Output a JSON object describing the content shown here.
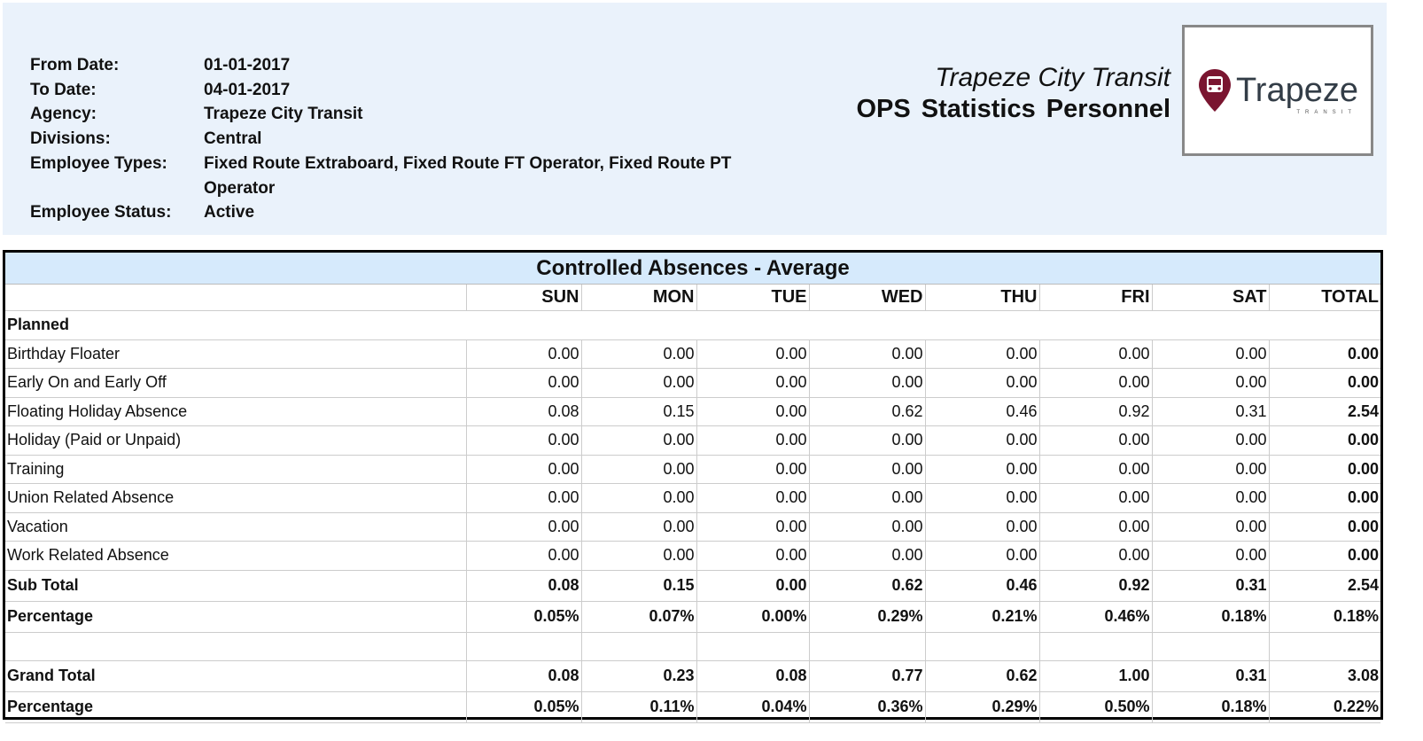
{
  "header": {
    "fields": [
      {
        "label": "From Date:",
        "value": "01-01-2017"
      },
      {
        "label": "To Date:",
        "value": "04-01-2017"
      },
      {
        "label": "Agency:",
        "value": "Trapeze City Transit"
      },
      {
        "label": "Divisions:",
        "value": "Central"
      },
      {
        "label": "Employee Types:",
        "value": "Fixed Route Extraboard, Fixed Route FT Operator, Fixed Route PT Operator"
      },
      {
        "label": "Employee Status:",
        "value": "Active"
      }
    ],
    "agency_title": "Trapeze City Transit",
    "report_title": "OPS  Statistics Personnel",
    "logo": {
      "wordmark": "Trapeze",
      "tagline": "TRANSIT",
      "color": "#7a1530"
    }
  },
  "table": {
    "title": "Controlled Absences - Average",
    "columns": [
      "SUN",
      "MON",
      "TUE",
      "WED",
      "THU",
      "FRI",
      "SAT",
      "TOTAL"
    ],
    "section": "Planned",
    "rows": [
      {
        "label": "Birthday Floater",
        "values": [
          "0.00",
          "0.00",
          "0.00",
          "0.00",
          "0.00",
          "0.00",
          "0.00",
          "0.00"
        ]
      },
      {
        "label": "Early On and Early Off",
        "values": [
          "0.00",
          "0.00",
          "0.00",
          "0.00",
          "0.00",
          "0.00",
          "0.00",
          "0.00"
        ]
      },
      {
        "label": "Floating Holiday Absence",
        "values": [
          "0.08",
          "0.15",
          "0.00",
          "0.62",
          "0.46",
          "0.92",
          "0.31",
          "2.54"
        ]
      },
      {
        "label": "Holiday (Paid or Unpaid)",
        "values": [
          "0.00",
          "0.00",
          "0.00",
          "0.00",
          "0.00",
          "0.00",
          "0.00",
          "0.00"
        ]
      },
      {
        "label": "Training",
        "values": [
          "0.00",
          "0.00",
          "0.00",
          "0.00",
          "0.00",
          "0.00",
          "0.00",
          "0.00"
        ]
      },
      {
        "label": "Union Related Absence",
        "values": [
          "0.00",
          "0.00",
          "0.00",
          "0.00",
          "0.00",
          "0.00",
          "0.00",
          "0.00"
        ]
      },
      {
        "label": "Vacation",
        "values": [
          "0.00",
          "0.00",
          "0.00",
          "0.00",
          "0.00",
          "0.00",
          "0.00",
          "0.00"
        ]
      },
      {
        "label": "Work Related Absence",
        "values": [
          "0.00",
          "0.00",
          "0.00",
          "0.00",
          "0.00",
          "0.00",
          "0.00",
          "0.00"
        ]
      }
    ],
    "sub_total": {
      "label": "Sub Total",
      "values": [
        "0.08",
        "0.15",
        "0.00",
        "0.62",
        "0.46",
        "0.92",
        "0.31",
        "2.54"
      ]
    },
    "sub_percentage": {
      "label": "Percentage",
      "values": [
        "0.05%",
        "0.07%",
        "0.00%",
        "0.29%",
        "0.21%",
        "0.46%",
        "0.18%",
        "0.18%"
      ]
    },
    "grand_total": {
      "label": "Grand Total",
      "values": [
        "0.08",
        "0.23",
        "0.08",
        "0.77",
        "0.62",
        "1.00",
        "0.31",
        "3.08"
      ]
    },
    "grand_percentage": {
      "label": "Percentage",
      "values": [
        "0.05%",
        "0.11%",
        "0.04%",
        "0.36%",
        "0.29%",
        "0.50%",
        "0.18%",
        "0.22%"
      ]
    }
  }
}
